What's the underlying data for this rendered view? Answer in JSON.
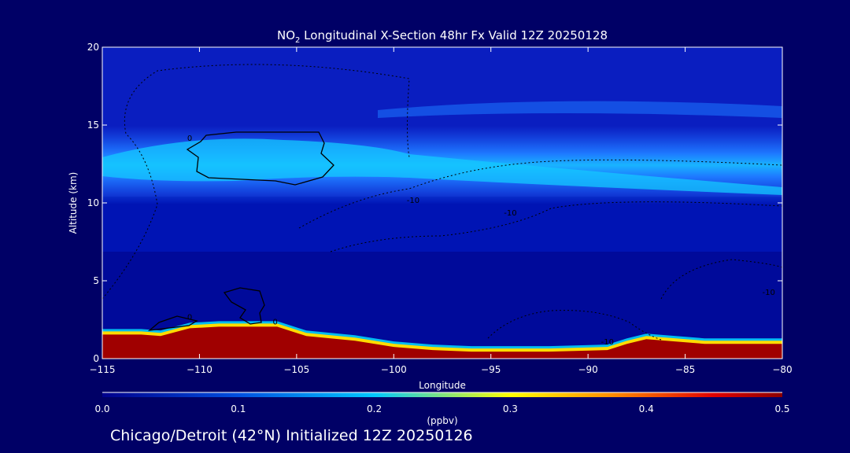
{
  "title": {
    "prefix": "NO",
    "sub": "2",
    "rest": " Longitudinal X-Section 48hr  Fx Valid 12Z 20250128"
  },
  "subtitle": "Chicago/Detroit (42°N) Initialized 12Z 20250126",
  "chart_data": {
    "type": "heatmap",
    "xlabel": "Longitude",
    "ylabel": "Altitude (km)",
    "xlim": [
      -115,
      -80
    ],
    "ylim": [
      0,
      20
    ],
    "xticks": [
      -115,
      -110,
      -105,
      -100,
      -95,
      -90,
      -85,
      -80
    ],
    "yticks": [
      0,
      5,
      10,
      15,
      20
    ],
    "colorbar": {
      "label": "(ppbv)",
      "range": [
        0.0,
        0.5
      ],
      "ticks": [
        0.0,
        0.1,
        0.2,
        0.3,
        0.4,
        0.5
      ],
      "colors": [
        "#00008c",
        "#0050e0",
        "#00c8ff",
        "#ffff00",
        "#ff8c00",
        "#e00000",
        "#8b0000"
      ]
    },
    "layers": [
      {
        "name": "background",
        "value": 0.05
      },
      {
        "name": "upper layer",
        "altitude_km": [
          11,
          14.5
        ],
        "peak_value": 0.15
      },
      {
        "name": "surface layer",
        "altitude_km": [
          0,
          2
        ],
        "peak_value": 0.5
      }
    ],
    "terrain": {
      "x": [
        -115,
        -113,
        -112,
        -110.5,
        -109,
        -106,
        -104.5,
        -102,
        -100,
        -98,
        -96,
        -92,
        -89,
        -88,
        -87,
        -84,
        -80
      ],
      "y": [
        1.6,
        1.6,
        1.5,
        2.0,
        2.1,
        2.1,
        1.5,
        1.2,
        0.8,
        0.6,
        0.5,
        0.5,
        0.6,
        1.0,
        1.3,
        1.0,
        1.0
      ]
    },
    "contour_labels": [
      {
        "text": "0",
        "x": -110.5,
        "y": 14.0
      },
      {
        "text": "0",
        "x": -110.5,
        "y": 2.5
      },
      {
        "text": "0",
        "x": -106.1,
        "y": 2.2
      },
      {
        "text": "-10",
        "x": -99,
        "y": 10.0
      },
      {
        "text": "-10",
        "x": -94,
        "y": 9.2
      },
      {
        "text": "-10",
        "x": -89,
        "y": 0.9
      },
      {
        "text": "-10",
        "x": -80.7,
        "y": 4.1
      }
    ]
  }
}
